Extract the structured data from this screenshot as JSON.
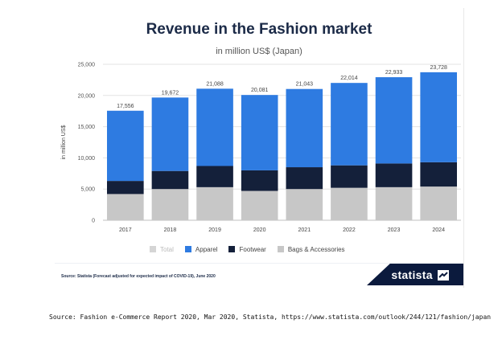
{
  "header": {
    "title": "Revenue in the Fashion market",
    "subtitle": "in million US$ (Japan)"
  },
  "legend": {
    "items": [
      {
        "label": "Total",
        "color": "#d5d5d5"
      },
      {
        "label": "Apparel",
        "color": "#2e7be1"
      },
      {
        "label": "Footwear",
        "color": "#14203a"
      },
      {
        "label": "Bags & Accessories",
        "color": "#c7c7c7"
      }
    ]
  },
  "footer": {
    "source": "Source: Statista (Forecast adjusted for expected impact of COVID-19), June 2020",
    "brand": "statista"
  },
  "caption": "Source: Fashion e-Commerce Report 2020, Mar 2020, Statista, https://www.statista.com/outlook/244/121/fashion/japan",
  "colors": {
    "apparel": "#2e7be1",
    "footwear": "#14203a",
    "bags": "#c7c7c7",
    "brand_bg": "#0b1a3d",
    "title": "#1b2a47"
  },
  "chart_data": {
    "type": "bar",
    "stacked": true,
    "title": "Revenue in the Fashion market",
    "subtitle": "in million US$ (Japan)",
    "xlabel": "",
    "ylabel": "in million US$",
    "ylim": [
      0,
      25000
    ],
    "yticks": [
      0,
      5000,
      10000,
      15000,
      20000,
      25000
    ],
    "ytick_labels": [
      "0",
      "5,000",
      "10,000",
      "15,000",
      "20,000",
      "25,000"
    ],
    "categories": [
      "2017",
      "2018",
      "2019",
      "2020",
      "2021",
      "2022",
      "2023",
      "2024"
    ],
    "totals": [
      17556,
      19672,
      21088,
      20081,
      21043,
      22014,
      22933,
      23728
    ],
    "total_labels": [
      "17,556",
      "19,672",
      "21,088",
      "20,081",
      "21,043",
      "22,014",
      "22,933",
      "23,728"
    ],
    "series": [
      {
        "name": "Bags & Accessories",
        "values": [
          4200,
          5000,
          5300,
          4700,
          5000,
          5200,
          5300,
          5400
        ]
      },
      {
        "name": "Footwear",
        "values": [
          2100,
          2900,
          3400,
          3300,
          3500,
          3600,
          3800,
          3900
        ]
      },
      {
        "name": "Apparel",
        "values": [
          11256,
          11772,
          12388,
          12081,
          12543,
          13214,
          13833,
          14428
        ]
      }
    ],
    "grid": true,
    "legend_position": "bottom"
  }
}
